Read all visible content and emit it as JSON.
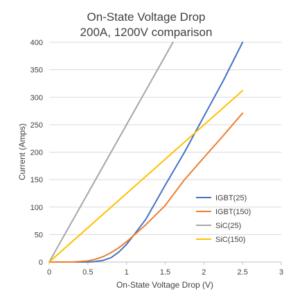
{
  "chart_data": {
    "type": "line",
    "title": "On-State Voltage Drop",
    "subtitle": "200A, 1200V comparison",
    "xlabel": "On-State Voltage Drop (V)",
    "ylabel": "Current (Amps)",
    "xlim": [
      0,
      3
    ],
    "ylim": [
      0,
      400
    ],
    "xticks": [
      0,
      0.5,
      1,
      1.5,
      2,
      2.5,
      3
    ],
    "xtick_labels": [
      "0",
      "0.5",
      "1",
      "1.5",
      "2",
      "2.5",
      "3"
    ],
    "yticks": [
      0,
      50,
      100,
      150,
      200,
      250,
      300,
      350,
      400
    ],
    "ytick_labels": [
      "0",
      "50",
      "100",
      "150",
      "200",
      "250",
      "300",
      "350",
      "400"
    ],
    "grid": "horizontal",
    "legend_position": "right",
    "series": [
      {
        "name": "IGBT(25)",
        "color": "#4472C4",
        "x": [
          0,
          0.3,
          0.5,
          0.6,
          0.7,
          0.8,
          0.9,
          1.0,
          1.1,
          1.25,
          1.5,
          1.75,
          2.0,
          2.25,
          2.5
        ],
        "y": [
          0,
          0,
          0,
          1,
          3,
          8,
          18,
          32,
          50,
          78,
          140,
          200,
          265,
          330,
          400
        ]
      },
      {
        "name": "IGBT(150)",
        "color": "#ED7D31",
        "x": [
          0,
          0.3,
          0.5,
          0.6,
          0.7,
          0.8,
          0.9,
          1.0,
          1.25,
          1.5,
          1.75,
          2.0,
          2.25,
          2.5
        ],
        "y": [
          0,
          0,
          2,
          5,
          10,
          17,
          26,
          37,
          68,
          103,
          150,
          190,
          230,
          271
        ]
      },
      {
        "name": "SiC(25)",
        "color": "#A5A5A5",
        "x": [
          0,
          1.6
        ],
        "y": [
          0,
          400
        ]
      },
      {
        "name": "SiC(150)",
        "color": "#FFC000",
        "x": [
          0,
          2.5
        ],
        "y": [
          0,
          312
        ]
      }
    ]
  }
}
